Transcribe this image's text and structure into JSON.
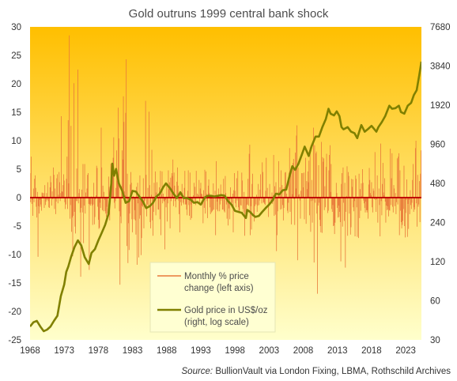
{
  "chart_data": {
    "type": "line",
    "title": "Gold outruns  1999 central bank shock",
    "source_label": "Source:",
    "source_text": " BullionVault via London Fixing, LBMA, Rothschild Archives",
    "x_ticks": [
      "1968",
      "1973",
      "1978",
      "1983",
      "1988",
      "1993",
      "1998",
      "2003",
      "2008",
      "2013",
      "2018",
      "2023"
    ],
    "xlim": [
      1968,
      2025.3
    ],
    "left_axis": {
      "ticks": [
        "30",
        "25",
        "20",
        "15",
        "10",
        "5",
        "0",
        "-5",
        "-10",
        "-15",
        "-20",
        "-25"
      ],
      "ylim": [
        -25,
        30
      ]
    },
    "right_axis": {
      "scale": "log",
      "ticks": [
        "7680",
        "3840",
        "1920",
        "960",
        "480",
        "240",
        "120",
        "60",
        "30"
      ],
      "ylim": [
        30,
        7680
      ]
    },
    "legend": {
      "placement": "bottom-center",
      "items": [
        {
          "lines": [
            "Monthly % price",
            "change (left axis)"
          ],
          "color": "#e8793a"
        },
        {
          "lines": [
            "Gold price in US$/oz",
            "(right, log scale)"
          ],
          "color": "#808000"
        }
      ]
    },
    "colors": {
      "background_top": "#ffbf00",
      "background_bottom": "#ffffcc",
      "monthly_change": "#e8793a",
      "gold_price": "#808000",
      "zero_line": "#c00000"
    },
    "series": [
      {
        "name": "Gold price in US$/oz",
        "axis": "right",
        "x": [
          1968.0,
          1968.5,
          1969.0,
          1969.5,
          1970.0,
          1970.5,
          1971.0,
          1971.5,
          1972.0,
          1972.5,
          1973.0,
          1973.3,
          1973.6,
          1974.0,
          1974.5,
          1975.0,
          1975.5,
          1976.0,
          1976.6,
          1977.0,
          1977.5,
          1978.0,
          1978.5,
          1979.0,
          1979.5,
          1979.9,
          1980.05,
          1980.3,
          1980.6,
          1981.0,
          1981.5,
          1982.0,
          1982.5,
          1983.0,
          1983.5,
          1984.0,
          1984.5,
          1985.0,
          1985.5,
          1986.0,
          1986.5,
          1987.0,
          1987.5,
          1987.9,
          1988.5,
          1989.0,
          1989.5,
          1990.0,
          1990.5,
          1991.0,
          1991.5,
          1992.0,
          1992.5,
          1993.0,
          1993.6,
          1994.0,
          1994.5,
          1995.0,
          1995.5,
          1996.0,
          1996.5,
          1997.0,
          1997.5,
          1998.0,
          1998.5,
          1999.0,
          1999.6,
          1999.8,
          2000.2,
          2000.6,
          2001.0,
          2001.5,
          2002.0,
          2002.5,
          2003.0,
          2003.5,
          2004.0,
          2004.5,
          2005.0,
          2005.5,
          2006.0,
          2006.4,
          2006.8,
          2007.3,
          2007.8,
          2008.2,
          2008.8,
          2009.2,
          2009.8,
          2010.3,
          2010.8,
          2011.3,
          2011.7,
          2012.0,
          2012.5,
          2012.9,
          2013.3,
          2013.6,
          2013.9,
          2014.5,
          2015.0,
          2015.5,
          2015.9,
          2016.5,
          2017.0,
          2017.5,
          2018.0,
          2018.7,
          2019.0,
          2019.5,
          2020.0,
          2020.6,
          2021.0,
          2021.5,
          2022.0,
          2022.3,
          2022.8,
          2023.3,
          2023.8,
          2024.2,
          2024.6,
          2025.0,
          2025.3
        ],
        "values": [
          38,
          41,
          42,
          38,
          35,
          36,
          38,
          42,
          46,
          65,
          80,
          100,
          110,
          130,
          155,
          175,
          160,
          130,
          115,
          140,
          150,
          175,
          200,
          230,
          280,
          480,
          680,
          550,
          620,
          480,
          420,
          340,
          350,
          420,
          415,
          380,
          350,
          310,
          320,
          340,
          380,
          400,
          450,
          480,
          440,
          400,
          370,
          410,
          370,
          370,
          360,
          340,
          345,
          330,
          375,
          385,
          385,
          380,
          385,
          390,
          385,
          350,
          330,
          295,
          290,
          285,
          260,
          300,
          290,
          275,
          265,
          270,
          290,
          310,
          330,
          355,
          400,
          395,
          425,
          430,
          550,
          650,
          610,
          680,
          800,
          920,
          780,
          920,
          1100,
          1100,
          1300,
          1500,
          1800,
          1650,
          1600,
          1720,
          1580,
          1300,
          1250,
          1300,
          1200,
          1170,
          1070,
          1350,
          1200,
          1260,
          1330,
          1200,
          1300,
          1420,
          1580,
          1900,
          1800,
          1820,
          1900,
          1700,
          1650,
          1900,
          2000,
          2300,
          2500,
          3300,
          4150
        ]
      },
      {
        "name": "Monthly % price change",
        "axis": "left",
        "x_start": 1968,
        "x_step_months": 1,
        "values": [
          4.3,
          -0.8,
          7.2,
          -1.1,
          -0.4,
          -3.2,
          1.6,
          -0.8,
          3.3,
          3.9,
          1.7,
          -1.6,
          -3.5,
          1.0,
          -10.4,
          -1.5,
          -2.8,
          -0.4,
          -1.6,
          -1.2,
          -2.3,
          0.9,
          0.8,
          0.3,
          0.8,
          -1.8,
          2.2,
          -1.3,
          -0.7,
          0.8,
          -0.4,
          2.7,
          -0.6,
          -1.7,
          -1.8,
          1.8,
          3.8,
          2.7,
          -1.4,
          1.1,
          -0.3,
          5.3,
          4.0,
          -2.0,
          1.6,
          -2.9,
          -0.7,
          3.4,
          4.1,
          -1.0,
          0.5,
          4.5,
          2.7,
          -0.6,
          0.8,
          14.3,
          1.1,
          1.0,
          2.2,
          4.1,
          3.0,
          -0.8,
          -2.0,
          -1.2,
          3.3,
          7.2,
          -2.0,
          13.6,
          2.5,
          28.5,
          -3.7,
          -1.3,
          12.6,
          -6.0,
          -3.5,
          -10.3,
          -3.2,
          20.1,
          -2.5,
          -5.1,
          -6.3,
          -0.6,
          5.1,
          -0.6,
          22.5,
          -1.0,
          0.8,
          1.5,
          -2.6,
          -13.9,
          -1.8,
          1.4,
          -2.6,
          5.9,
          -8.0,
          -1.4,
          5.9,
          -2.8,
          0.9,
          0.2,
          1.6,
          4.0,
          4.3,
          -1.1,
          -12.7,
          -1.2,
          -1.4,
          -1.1,
          0.2,
          -1.4,
          -4.8,
          -1.2,
          2.6,
          -4.7,
          -3.4,
          -0.3,
          0.4,
          5.6,
          5.2,
          -1.6,
          -3.9,
          -5.5,
          -5.3,
          -0.9,
          -1.8,
          12.3,
          5.3,
          -2.2,
          2.1,
          -2.4,
          1.0,
          -0.4,
          -2.4,
          -2.8,
          -3.4,
          -1.6,
          -2.8,
          0.1,
          3.7,
          1.9,
          -4.0,
          2.1,
          6.0,
          2.3,
          2.6,
          4.0,
          7.0,
          10.6,
          -0.9,
          -1.9,
          -0.6,
          1.7,
          8.3,
          3.0,
          3.4,
          15.8,
          10.4,
          -2.4,
          -15.3,
          -3.3,
          -4.5,
          2.0,
          8.3,
          6.7,
          17.8,
          13.3,
          1.1,
          0.4,
          14.9,
          24.3,
          -8.5,
          4.2,
          -11.5,
          -4.5,
          -9.2,
          -2.8,
          2.3,
          4.5,
          2.6,
          -3.8,
          -6.1,
          0.3,
          -0.4,
          -3.8,
          -2.2,
          -4.0,
          -6.5,
          1.9,
          -11.8,
          2.6,
          -1.0,
          -10.5,
          -3.7,
          3.9,
          -3.1,
          -10.1,
          -7.1,
          -1.4,
          -1.6,
          3.4,
          -5.4,
          -1.3,
          -0.5,
          17.0,
          4.0,
          -3.3,
          -1.2,
          1.7,
          -1.4,
          15.1,
          2.2,
          -4.3,
          -5.4,
          0.5,
          8.4,
          -4.0,
          -6.7,
          -2.5,
          2.6,
          -0.5,
          4.6,
          -3.1,
          0.9,
          2.7,
          0.6,
          -2.1,
          -2.1,
          1.8,
          -3.8,
          4.7,
          -6.6,
          0.6,
          4.6,
          -1.0,
          0.7,
          -0.5,
          -0.7,
          -9.1,
          -0.4,
          -1.7,
          2.2,
          -4.2,
          -1.0,
          4.8,
          1.5,
          2.7,
          -5.4,
          3.5,
          -0.6,
          4.3,
          3.8,
          6.7,
          -1.5,
          4.4,
          2.1,
          -0.6,
          -1.7,
          0.1,
          2.8,
          5.3,
          2.1,
          -0.5,
          -2.9,
          -6.1,
          0.9,
          -0.8,
          -1.4,
          2.4,
          0.8,
          -0.9,
          -1.2,
          1.7,
          4.7,
          -1.2,
          -1.2,
          -2.1,
          -3.1,
          1.2,
          4.8,
          -1.3,
          -3.2,
          4.4,
          -3.9,
          -1.2,
          -3.6,
          -0.6,
          -0.6,
          0.4,
          2.6,
          -1.0,
          1.9,
          -1.3,
          4.7,
          -0.1,
          0.7,
          -0.1,
          0.5,
          3.1,
          -1.3,
          1.6,
          2.6,
          0.7,
          0.6,
          -0.3,
          -4.5,
          1.3,
          -1.8,
          4.9,
          -2.8,
          4.6,
          0.7,
          -0.6,
          -3.6,
          2.1,
          3.2,
          0.8,
          -1.7,
          -2.9,
          -0.2,
          -2.6,
          -2.4,
          -2.2,
          2.5,
          -2.1,
          0.1,
          1.2,
          -6.6,
          6.4,
          -2.1,
          -0.7,
          -2.4,
          1.6,
          -0.3,
          -2.4,
          -1.2,
          2.3,
          -0.5,
          -0.1,
          -2.1,
          -2.1,
          3.3,
          -2.4,
          -2.6,
          3.8,
          0.8,
          -1.2,
          -3.7,
          0.2,
          -4.9,
          -1.9,
          -0.4,
          -3.8,
          1.8,
          -0.3,
          -1.1,
          -0.9,
          0.7,
          -6.1,
          1.3,
          4.3,
          1.2,
          -1.0,
          -1.7,
          3.4,
          -0.5,
          4.7,
          -1.7,
          -2.5,
          -2.3,
          0.1,
          -1.3,
          -1.4,
          4.4,
          3.0,
          -2.0,
          -2.6,
          1.0,
          -6.7,
          0.0,
          -3.0,
          -2.6,
          -1.3,
          -1.2,
          3.3,
          -1.4,
          7.7,
          9.3,
          -6.6,
          -1.5,
          -5.6,
          2.4,
          4.2,
          0.1,
          -3.4,
          -4.2,
          -1.5,
          0.0,
          -1.2,
          0.5,
          -2.5,
          -1.4,
          2.4,
          -1.3,
          -0.5,
          1.4,
          4.1,
          0.1,
          -1.0,
          6.2,
          4.5,
          -0.9,
          -0.8,
          -1.1,
          -1.3,
          1.2,
          7.0,
          0.0,
          1.7,
          0.1,
          -3.4,
          -1.2,
          2.4,
          0.1,
          -1.0,
          -0.6,
          0.9,
          -1.1,
          0.4,
          7.5,
          -3.2,
          2.0,
          -3.0,
          2.7,
          -9.4,
          -6.6,
          -2.4,
          1.0,
          6.4,
          0.2,
          1.8,
          -2.1,
          4.8,
          -2.0,
          2.2,
          -1.3,
          -4.0,
          -1.8,
          1.8,
          4.4,
          4.5,
          -0.1,
          0.7,
          -2.3,
          -2.7,
          -0.9,
          4.4,
          8.7,
          -2.5,
          4.8,
          -4.7,
          4.9,
          0.6,
          6.1,
          6.8,
          -0.3,
          -4.8,
          7.9,
          1.6,
          10.9,
          12.7,
          -11.0,
          5.3,
          0.5,
          0.6,
          -0.5,
          -3.7,
          1.2,
          4.3,
          -0.1,
          4.3,
          1.8,
          4.4,
          -3.8,
          -0.2,
          7.0,
          -4.6,
          2.9,
          1.5,
          4.6,
          2.7,
          6.5,
          -3.1,
          8.8,
          -6.0,
          -0.6,
          3.1,
          -4.4,
          -0.5,
          12.3,
          -11.4,
          9.2,
          -0.9,
          7.8,
          8.1,
          -2.8,
          -16.9,
          -1.4,
          5.7,
          -0.9,
          -3.9,
          -5.0,
          -6.1,
          9.8,
          -6.2,
          7.1,
          6.3,
          6.9,
          -2.2,
          2.0,
          -1.7,
          5.4,
          7.7,
          0.0,
          -2.7,
          -2.3,
          4.8,
          7.5,
          9.2,
          1.0,
          5.9,
          -2.0,
          -2.5,
          -1.3,
          -5.0,
          -4.9,
          -6.4,
          -4.4,
          -0.1,
          2.6,
          0.8,
          -1.8,
          -3.5,
          -1.4,
          -3.4,
          -2.5,
          -4.3,
          -11.2,
          2.4,
          4.3,
          -5.1,
          5.3,
          -0.9,
          -4.1,
          2.6,
          -12.3,
          -2.5,
          0.3,
          5.5,
          -6.7,
          4.5,
          3.8,
          -2.8,
          0.2,
          -6.5,
          -5.2,
          3.3,
          1.9,
          3.2,
          -1.7,
          -2.4,
          -0.6,
          -6.8,
          3.9,
          3.3,
          -1.7,
          -6.9,
          0.2,
          -7.1,
          4.2,
          -3.6,
          1.5,
          -2.3,
          2.5,
          0.3,
          5.0,
          2.6,
          -0.5,
          -1.0,
          -1.8,
          -2.6,
          -0.7,
          -2.2,
          -2.6,
          -2.2,
          -3.7,
          2.3,
          5.2,
          3.1,
          0.8,
          0.4,
          2.7,
          -1.7,
          -2.6,
          1.6,
          1.2,
          -0.3,
          8.0,
          -0.4,
          -2.5,
          -0.3,
          3.9,
          -4.4,
          0.0,
          1.6,
          -1.3,
          -6.8,
          9.5,
          -0.6,
          -3.1,
          2.4,
          6.1,
          0.9,
          0.4,
          3.4,
          -0.7,
          -4.4,
          -1.4,
          -2.2,
          -1.5,
          -2.1,
          -3.3,
          -2.2,
          -2.3,
          8.6,
          -1.3,
          3.4,
          7.8,
          -1.6,
          -2.6,
          2.2,
          1.6,
          -1.5,
          0.8,
          -2.9,
          -0.8,
          6.9,
          -1.2,
          7.2,
          7.8,
          -6.6,
          4.8,
          -2.3,
          -4.3,
          -5.4,
          -4.8,
          -4.1,
          -2.0,
          5.6,
          -5.0,
          -7.0,
          -2.7,
          -0.4,
          3.2,
          -6.9,
          -1.1,
          -5.5,
          -0.4,
          -2.9,
          1.3,
          -1.3,
          -2.0,
          -0.9,
          3.1,
          5.9,
          -2.5,
          -1.7,
          -2.1,
          8.7,
          10.0,
          -1.0,
          -5.1,
          4.0,
          -1.6,
          -1.2,
          2.9,
          -4.3,
          4.2,
          8.3,
          3.5,
          5.8,
          5.7,
          -4.6,
          5.9,
          0.7,
          0.2,
          9.2,
          -1.5,
          -2.0,
          -4.2,
          6.8,
          -2.0,
          4.8,
          1.8,
          -3.5,
          2.7,
          1.1,
          1.7,
          0.8,
          0.4,
          -0.4,
          9.1,
          -0.1,
          3.1,
          2.0,
          4.0,
          -0.6,
          3.6,
          -0.8,
          11.4,
          1.3,
          -1.2,
          1.1,
          -1.2,
          2.3,
          0.1,
          1.9
        ]
      }
    ]
  }
}
